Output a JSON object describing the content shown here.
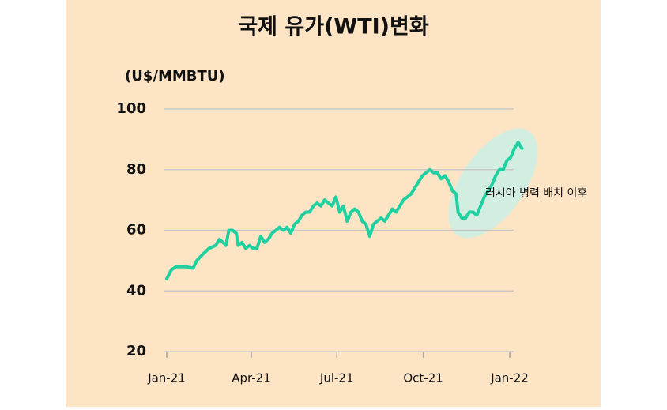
{
  "chart_data": {
    "type": "line",
    "title": "국제 유가(WTI)변화",
    "y_label": "(U$/MMBTU)",
    "annotation": "러시아 병력 배치 이후",
    "ylim": [
      20,
      100
    ],
    "yticks": [
      20,
      40,
      60,
      80,
      100
    ],
    "xlim": [
      0,
      378
    ],
    "xticks": [
      {
        "value": 0,
        "label": "Jan-21"
      },
      {
        "value": 90,
        "label": "Apr-21"
      },
      {
        "value": 181,
        "label": "Jul-21"
      },
      {
        "value": 273,
        "label": "Oct-21"
      },
      {
        "value": 365,
        "label": "Jan-22"
      }
    ],
    "grid": true,
    "x": [
      0,
      5,
      10,
      20,
      28,
      32,
      38,
      45,
      52,
      56,
      60,
      63,
      66,
      70,
      74,
      76,
      80,
      84,
      88,
      92,
      96,
      100,
      104,
      108,
      112,
      116,
      120,
      124,
      128,
      132,
      136,
      140,
      144,
      148,
      152,
      156,
      160,
      164,
      168,
      172,
      176,
      180,
      184,
      188,
      192,
      196,
      200,
      204,
      208,
      212,
      216,
      220,
      224,
      228,
      232,
      236,
      240,
      244,
      248,
      252,
      256,
      260,
      264,
      268,
      272,
      276,
      280,
      284,
      288,
      292,
      296,
      300,
      304,
      308,
      310,
      314,
      318,
      322,
      326,
      330,
      334,
      338,
      342,
      346,
      350,
      354,
      358,
      362,
      366,
      370,
      374,
      378
    ],
    "series": [
      {
        "name": "WTI",
        "color": "#1fd0a0",
        "values": [
          44,
          47,
          48,
          48,
          47.5,
          50,
          52,
          54,
          55,
          57,
          56,
          55,
          60,
          60,
          59,
          55,
          56,
          54,
          55,
          54,
          54,
          58,
          56,
          57,
          59,
          60,
          61,
          60,
          61,
          59,
          62,
          63,
          65,
          66,
          66,
          68,
          69,
          68,
          70,
          69,
          68,
          71,
          66,
          68,
          63,
          66,
          67,
          66,
          63,
          62,
          58,
          62,
          63,
          64,
          63,
          65,
          67,
          66,
          68,
          70,
          71,
          72,
          74,
          76,
          78,
          79,
          80,
          79,
          79,
          77,
          78,
          76,
          73,
          72,
          66,
          64,
          64,
          66,
          66,
          65,
          68,
          71,
          73,
          75,
          78,
          80,
          80,
          83,
          84,
          87,
          89,
          87
        ]
      }
    ]
  }
}
